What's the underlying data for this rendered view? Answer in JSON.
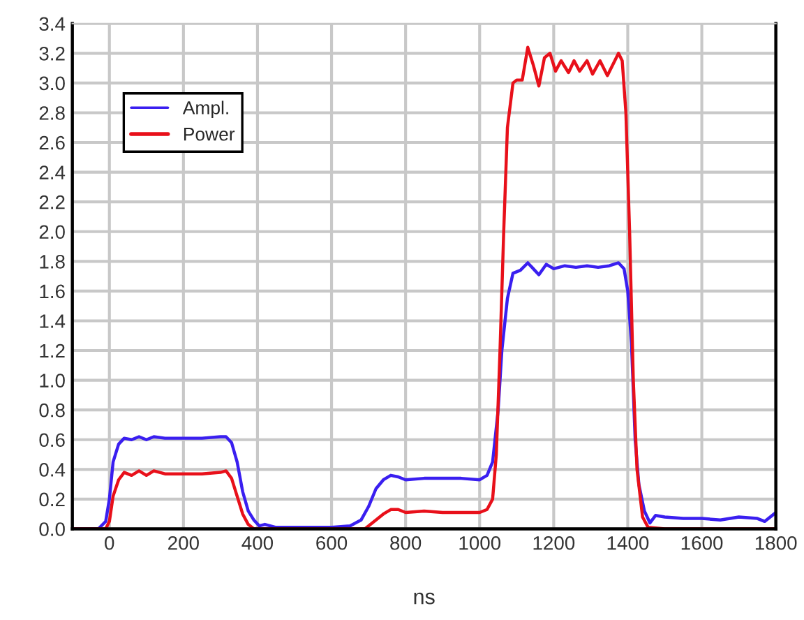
{
  "chart_data": {
    "type": "line",
    "xlabel": "ns",
    "xlim": [
      -100,
      1800
    ],
    "xticks": [
      0,
      200,
      400,
      600,
      800,
      1000,
      1200,
      1400,
      1600,
      1800
    ],
    "ylim": [
      0,
      3.4
    ],
    "yticks": [
      {
        "value": 0,
        "label": "0.0"
      },
      {
        "value": 0.2,
        "label": "0.2"
      },
      {
        "value": 0.4,
        "label": "0.4"
      },
      {
        "value": 0.6,
        "label": "0.6"
      },
      {
        "value": 0.8,
        "label": "0.8"
      },
      {
        "value": 1.0,
        "label": "1.0"
      },
      {
        "value": 1.2,
        "label": "1.2"
      },
      {
        "value": 1.4,
        "label": "1.4"
      },
      {
        "value": 1.6,
        "label": "1.6"
      },
      {
        "value": 1.8,
        "label": "1.8"
      },
      {
        "value": 2.0,
        "label": "2.0"
      },
      {
        "value": 2.2,
        "label": "2.2"
      },
      {
        "value": 2.4,
        "label": "2.4"
      },
      {
        "value": 2.6,
        "label": "2.6"
      },
      {
        "value": 2.8,
        "label": "2.8"
      },
      {
        "value": 3.0,
        "label": "3.0"
      },
      {
        "value": 3.2,
        "label": "3.2"
      },
      {
        "value": 3.4,
        "label": "3.4"
      }
    ],
    "grid": true,
    "legend": "top left",
    "marker": "none",
    "line_style": "solid",
    "series": [
      {
        "name": "Ampl.",
        "color": "#3a1ff0",
        "x": [
          -100,
          -30,
          -10,
          0,
          10,
          25,
          40,
          60,
          80,
          100,
          120,
          150,
          200,
          250,
          300,
          315,
          330,
          345,
          360,
          375,
          390,
          405,
          420,
          450,
          500,
          600,
          650,
          680,
          700,
          720,
          740,
          760,
          780,
          800,
          850,
          900,
          950,
          1000,
          1020,
          1035,
          1050,
          1060,
          1075,
          1090,
          1110,
          1130,
          1160,
          1180,
          1200,
          1230,
          1260,
          1290,
          1320,
          1350,
          1375,
          1390,
          1400,
          1410,
          1420,
          1430,
          1445,
          1460,
          1475,
          1500,
          1550,
          1600,
          1650,
          1700,
          1750,
          1770,
          1800
        ],
        "values": [
          0,
          0,
          0.05,
          0.2,
          0.45,
          0.57,
          0.61,
          0.6,
          0.62,
          0.6,
          0.62,
          0.61,
          0.61,
          0.61,
          0.62,
          0.62,
          0.58,
          0.45,
          0.25,
          0.12,
          0.06,
          0.02,
          0.03,
          0.01,
          0.01,
          0.01,
          0.02,
          0.06,
          0.15,
          0.27,
          0.33,
          0.36,
          0.35,
          0.33,
          0.34,
          0.34,
          0.34,
          0.33,
          0.36,
          0.45,
          0.8,
          1.2,
          1.55,
          1.72,
          1.74,
          1.79,
          1.71,
          1.78,
          1.75,
          1.77,
          1.76,
          1.77,
          1.76,
          1.77,
          1.79,
          1.75,
          1.6,
          1.25,
          0.6,
          0.3,
          0.12,
          0.04,
          0.09,
          0.08,
          0.07,
          0.07,
          0.06,
          0.08,
          0.07,
          0.05,
          0.11
        ]
      },
      {
        "name": "Power",
        "color": "#e8101a",
        "x": [
          -100,
          -10,
          0,
          10,
          25,
          40,
          60,
          80,
          100,
          120,
          150,
          200,
          250,
          300,
          315,
          330,
          345,
          360,
          375,
          390,
          500,
          600,
          690,
          710,
          740,
          760,
          780,
          800,
          850,
          900,
          1000,
          1020,
          1035,
          1045,
          1055,
          1065,
          1075,
          1090,
          1100,
          1115,
          1130,
          1145,
          1160,
          1175,
          1190,
          1205,
          1220,
          1240,
          1255,
          1270,
          1290,
          1305,
          1325,
          1345,
          1365,
          1375,
          1385,
          1395,
          1405,
          1415,
          1425,
          1440,
          1455,
          1500,
          1800
        ],
        "values": [
          0,
          0,
          0.05,
          0.22,
          0.33,
          0.38,
          0.36,
          0.39,
          0.36,
          0.39,
          0.37,
          0.37,
          0.37,
          0.38,
          0.39,
          0.34,
          0.22,
          0.1,
          0.03,
          0,
          0,
          0,
          0,
          0.04,
          0.1,
          0.13,
          0.13,
          0.11,
          0.12,
          0.11,
          0.11,
          0.13,
          0.2,
          0.5,
          1.2,
          2.0,
          2.7,
          3.0,
          3.02,
          3.02,
          3.24,
          3.12,
          2.98,
          3.17,
          3.2,
          3.08,
          3.15,
          3.07,
          3.15,
          3.08,
          3.15,
          3.06,
          3.15,
          3.05,
          3.15,
          3.2,
          3.15,
          2.8,
          2.0,
          1.0,
          0.4,
          0.08,
          0.01,
          0,
          0
        ]
      }
    ]
  }
}
